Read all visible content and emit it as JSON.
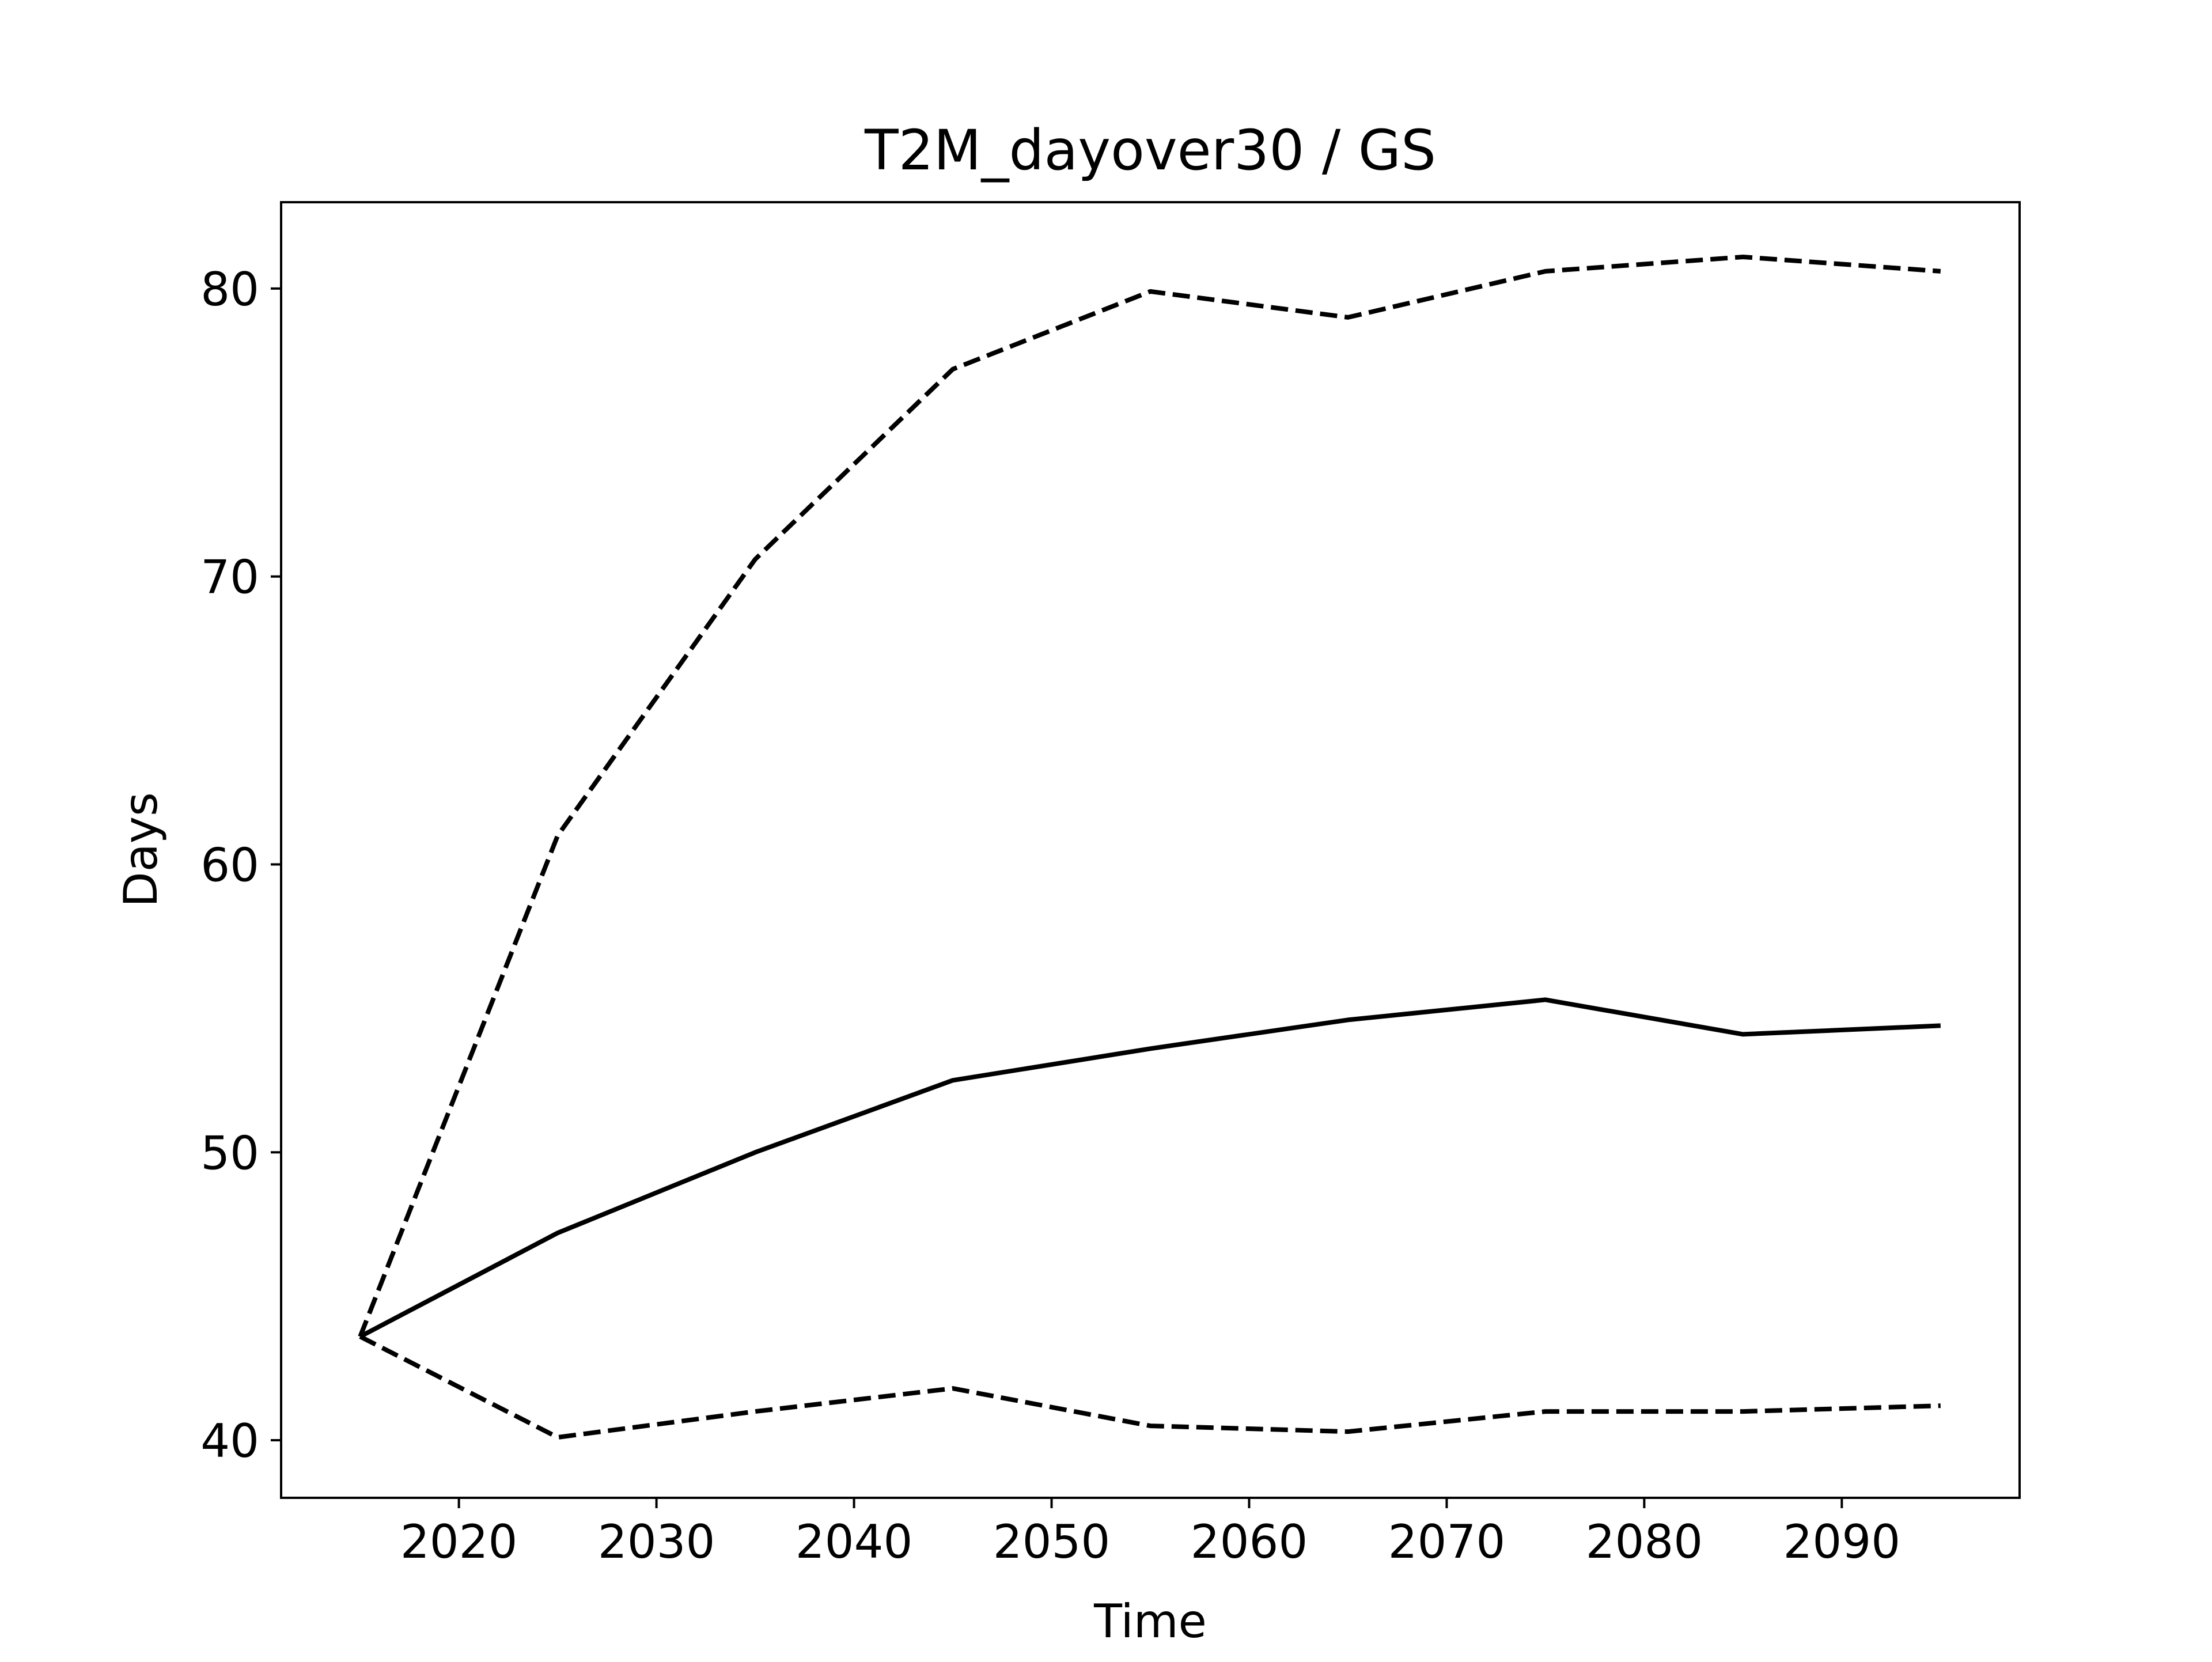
{
  "chart_data": {
    "type": "line",
    "title": "T2M_dayover30 / GS",
    "xlabel": "Time",
    "ylabel": "Days",
    "xlim": [
      2011,
      2099
    ],
    "ylim": [
      38,
      83
    ],
    "xticks": [
      2020,
      2030,
      2040,
      2050,
      2060,
      2070,
      2080,
      2090
    ],
    "yticks": [
      40,
      50,
      60,
      70,
      80
    ],
    "grid": false,
    "x": [
      2015,
      2025,
      2035,
      2045,
      2055,
      2065,
      2075,
      2085,
      2095
    ],
    "series": [
      {
        "values": [
          43.6,
          47.2,
          50.0,
          52.5,
          53.6,
          54.6,
          55.3,
          54.1,
          54.4
        ],
        "color": "#000000",
        "style": "solid"
      },
      {
        "values": [
          43.6,
          61.0,
          70.6,
          77.2,
          79.9,
          79.0,
          80.6,
          81.1,
          80.6
        ],
        "color": "#000000",
        "style": "dashed"
      },
      {
        "values": [
          43.6,
          40.1,
          41.0,
          41.8,
          40.5,
          40.3,
          41.0,
          41.0,
          41.2
        ],
        "color": "#000000",
        "style": "dashed"
      }
    ]
  }
}
